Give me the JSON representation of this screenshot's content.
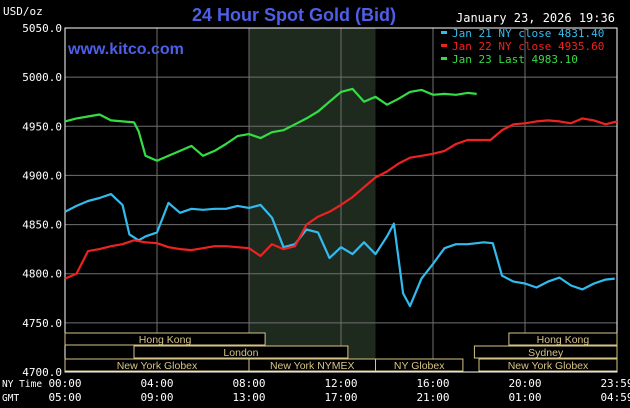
{
  "header": {
    "unit_label": "USD/oz",
    "title": "24 Hour Spot Gold (Bid)",
    "timestamp": "January 23, 2026 19:36",
    "website": "www.kitco.com"
  },
  "legend": [
    {
      "label": "Jan 21 NY close 4831.40",
      "color": "#33bbee"
    },
    {
      "label": "Jan 22 NY close 4935.60",
      "color": "#ee2222"
    },
    {
      "label": "Jan 23 Last 4983.10",
      "color": "#33dd44"
    }
  ],
  "sessions": [
    {
      "label": "Hong Kong",
      "row": 0,
      "start": 0,
      "end": 8.7
    },
    {
      "label": "Hong Kong",
      "row": 0,
      "start": 19.3,
      "end": 24
    },
    {
      "label": "London",
      "row": 1,
      "start": 3,
      "end": 12.3
    },
    {
      "label": "Sydney",
      "row": 1,
      "start": 17.8,
      "end": 24
    },
    {
      "label": "New York Globex",
      "row": 2,
      "start": 0,
      "end": 8
    },
    {
      "label": "New York NYMEX",
      "row": 2,
      "start": 8,
      "end": 13.5
    },
    {
      "label": "NY Globex",
      "row": 2,
      "start": 13.5,
      "end": 17.3
    },
    {
      "label": "New York Globex",
      "row": 2,
      "start": 18,
      "end": 24
    }
  ],
  "time_rows": [
    {
      "label": "NY Time",
      "ticks": [
        "00:00",
        "04:00",
        "08:00",
        "12:00",
        "16:00",
        "20:00",
        "23:59"
      ]
    },
    {
      "label": "GMT",
      "ticks": [
        "05:00",
        "09:00",
        "13:00",
        "17:00",
        "21:00",
        "01:00",
        "04:59"
      ]
    }
  ],
  "colors": {
    "background": "#000000",
    "grid": "#6f6f6f",
    "nymex_shade": "#1f2a1f",
    "title": "#4d5fe8",
    "text": "#ffffff",
    "session_box": "#d6c487"
  },
  "chart_data": {
    "type": "line",
    "title": "24 Hour Spot Gold (Bid)",
    "ylabel": "USD/oz",
    "xlim": [
      0,
      24
    ],
    "ylim": [
      4700,
      5050
    ],
    "ytick_labels": [
      "5050.0",
      "5000.0",
      "4950.0",
      "4900.0",
      "4850.0",
      "4800.0",
      "4750.0",
      "4700.0"
    ],
    "ytick_values": [
      5050,
      5000,
      4950,
      4900,
      4850,
      4800,
      4750,
      4700
    ],
    "grid": true,
    "shaded_region": [
      8,
      13.5
    ],
    "series": [
      {
        "name": "Jan 21 NY close 4831.40",
        "color": "#33bbee",
        "x": [
          0,
          0.5,
          1,
          1.5,
          2,
          2.5,
          2.8,
          3.2,
          3.5,
          4,
          4.5,
          5,
          5.5,
          6,
          6.5,
          7,
          7.5,
          8,
          8.5,
          9,
          9.5,
          10,
          10.5,
          11,
          11.5,
          12,
          12.5,
          13,
          13.5,
          14,
          14.3,
          14.7,
          15,
          15.5,
          16,
          16.5,
          17,
          17.5,
          17.9,
          18.2,
          18.6,
          19,
          19.5,
          20,
          20.5,
          21,
          21.5,
          22,
          22.5,
          23,
          23.5,
          23.9
        ],
        "y": [
          4863,
          4869,
          4874,
          4877,
          4881,
          4870,
          4840,
          4834,
          4838,
          4842,
          4872,
          4862,
          4866,
          4865,
          4866,
          4866,
          4869,
          4867,
          4870,
          4857,
          4827,
          4830,
          4845,
          4842,
          4816,
          4827,
          4820,
          4832,
          4820,
          4838,
          4851,
          4780,
          4767,
          4795,
          4810,
          4826,
          4830,
          4830,
          4831,
          4832,
          4831,
          4798,
          4792,
          4790,
          4786,
          4792,
          4796,
          4788,
          4784,
          4790,
          4794,
          4795
        ]
      },
      {
        "name": "Jan 22 NY close 4935.60",
        "color": "#ee2222",
        "x": [
          0,
          0.5,
          1,
          1.5,
          2,
          2.5,
          3,
          3.5,
          4,
          4.5,
          5,
          5.5,
          6,
          6.5,
          7,
          7.5,
          8,
          8.5,
          9,
          9.5,
          10,
          10.5,
          11,
          11.5,
          12,
          12.5,
          13,
          13.5,
          14,
          14.5,
          15,
          15.5,
          16,
          16.5,
          17,
          17.5,
          18,
          18.5,
          19,
          19.5,
          20,
          20.5,
          21,
          21.5,
          22,
          22.5,
          23,
          23.5,
          24
        ],
        "y": [
          4795,
          4800,
          4823,
          4825,
          4828,
          4830,
          4834,
          4832,
          4831,
          4827,
          4825,
          4824,
          4826,
          4828,
          4828,
          4827,
          4826,
          4818,
          4830,
          4825,
          4828,
          4850,
          4858,
          4863,
          4870,
          4878,
          4888,
          4898,
          4904,
          4912,
          4918,
          4920,
          4922,
          4925,
          4932,
          4936,
          4936,
          4936,
          4946,
          4952,
          4953,
          4955,
          4956,
          4955,
          4953,
          4958,
          4956,
          4952,
          4955
        ]
      },
      {
        "name": "Jan 23 Last 4983.10",
        "color": "#33dd44",
        "x": [
          0,
          0.5,
          1,
          1.5,
          2,
          2.5,
          3,
          3.2,
          3.5,
          4,
          4.5,
          5,
          5.5,
          6,
          6.5,
          7,
          7.5,
          8,
          8.5,
          9,
          9.5,
          10,
          10.5,
          11,
          11.5,
          12,
          12.5,
          13,
          13.5,
          14,
          14.5,
          15,
          15.5,
          16,
          16.5,
          17,
          17.5,
          17.9
        ],
        "y": [
          4955,
          4958,
          4960,
          4962,
          4956,
          4955,
          4954,
          4945,
          4920,
          4915,
          4920,
          4925,
          4930,
          4920,
          4925,
          4932,
          4940,
          4942,
          4938,
          4944,
          4946,
          4952,
          4958,
          4965,
          4975,
          4985,
          4988,
          4975,
          4980,
          4972,
          4978,
          4985,
          4987,
          4982,
          4983,
          4982,
          4984,
          4983
        ]
      }
    ]
  }
}
